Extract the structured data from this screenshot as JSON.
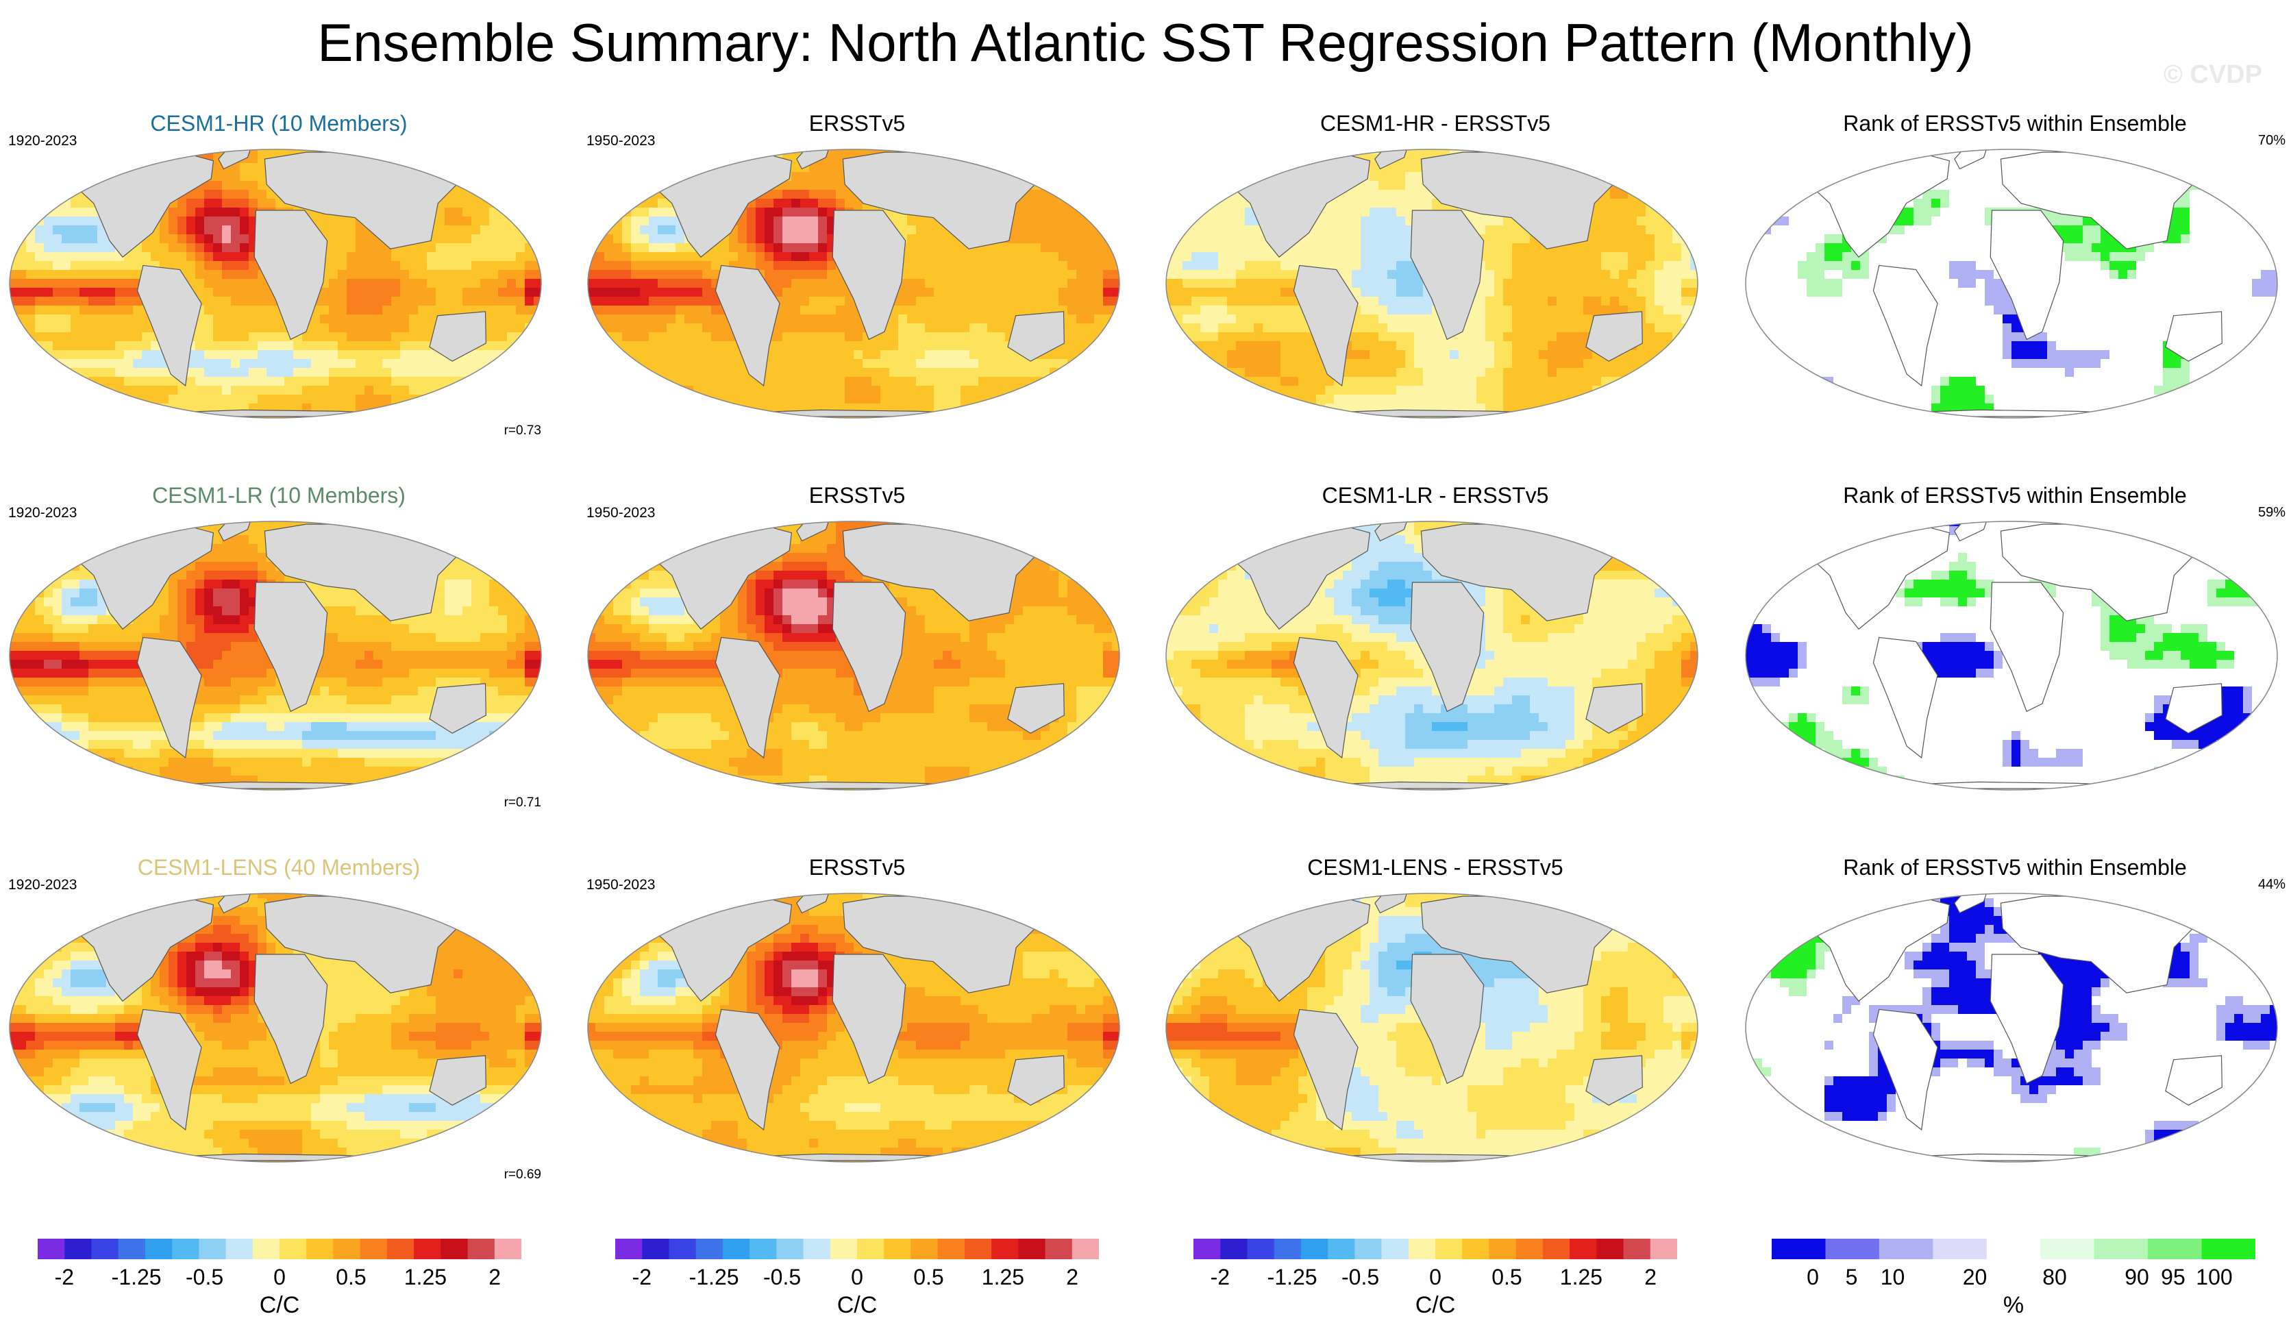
{
  "title": "Ensemble Summary: North Atlantic SST Regression Pattern (Monthly)",
  "watermark": "© CVDP",
  "colors": {
    "diverging": [
      "#7b2be3",
      "#2b1fd1",
      "#3a44e6",
      "#3d72ea",
      "#2f9fee",
      "#52b9f2",
      "#8dd0f3",
      "#c4e6f8",
      "#fdf4a6",
      "#fde25c",
      "#fdc42a",
      "#fba41f",
      "#f9801c",
      "#f25b1d",
      "#e4201c",
      "#c8101a",
      "#d3484e",
      "#f4a6ac"
    ],
    "rank": [
      "#0a0ae6",
      "#7070f0",
      "#b0b0f4",
      "#dcdcfa",
      "#ffffff",
      "#e4fbe4",
      "#b8f5b8",
      "#7df07d",
      "#22f022"
    ],
    "land": "#d9d9d9",
    "ocean": "#ffffff"
  },
  "chart_data": [
    {
      "type": "heatmap",
      "title": "CESM1-HR (10 Members)",
      "title_color": "#1a6f9c",
      "period": "1920-2023",
      "annotation": "r=0.73",
      "units": "C/C"
    },
    {
      "type": "heatmap",
      "title": "ERSSTv5",
      "period": "1950-2023",
      "units": "C/C"
    },
    {
      "type": "heatmap",
      "title": "CESM1-HR - ERSSTv5",
      "units": "C/C"
    },
    {
      "type": "heatmap",
      "title": "Rank of ERSSTv5 within Ensemble",
      "annotation": "70%",
      "units": "%"
    },
    {
      "type": "heatmap",
      "title": "CESM1-LR (10 Members)",
      "title_color": "#5d8a6a",
      "period": "1920-2023",
      "annotation": "r=0.71",
      "units": "C/C"
    },
    {
      "type": "heatmap",
      "title": "ERSSTv5",
      "period": "1950-2023",
      "units": "C/C"
    },
    {
      "type": "heatmap",
      "title": "CESM1-LR - ERSSTv5",
      "units": "C/C"
    },
    {
      "type": "heatmap",
      "title": "Rank of ERSSTv5 within Ensemble",
      "annotation": "59%",
      "units": "%"
    },
    {
      "type": "heatmap",
      "title": "CESM1-LENS (40 Members)",
      "title_color": "#d8c77a",
      "period": "1920-2023",
      "annotation": "r=0.69",
      "units": "C/C"
    },
    {
      "type": "heatmap",
      "title": "ERSSTv5",
      "period": "1950-2023",
      "units": "C/C"
    },
    {
      "type": "heatmap",
      "title": "CESM1-LENS - ERSSTv5",
      "units": "C/C"
    },
    {
      "type": "heatmap",
      "title": "Rank of ERSSTv5 within Ensemble",
      "annotation": "44%",
      "units": "%"
    }
  ],
  "colorbars": {
    "regression": {
      "ticks": [
        "-2",
        "-1.25",
        "-0.5",
        "0",
        "0.5",
        "1.25",
        "2"
      ],
      "unit": "C/C",
      "range": [
        -2,
        2
      ]
    },
    "rank": {
      "ticks": [
        "0",
        "5",
        "10",
        "20",
        "80",
        "90",
        "95",
        "100"
      ],
      "unit": "%"
    }
  }
}
